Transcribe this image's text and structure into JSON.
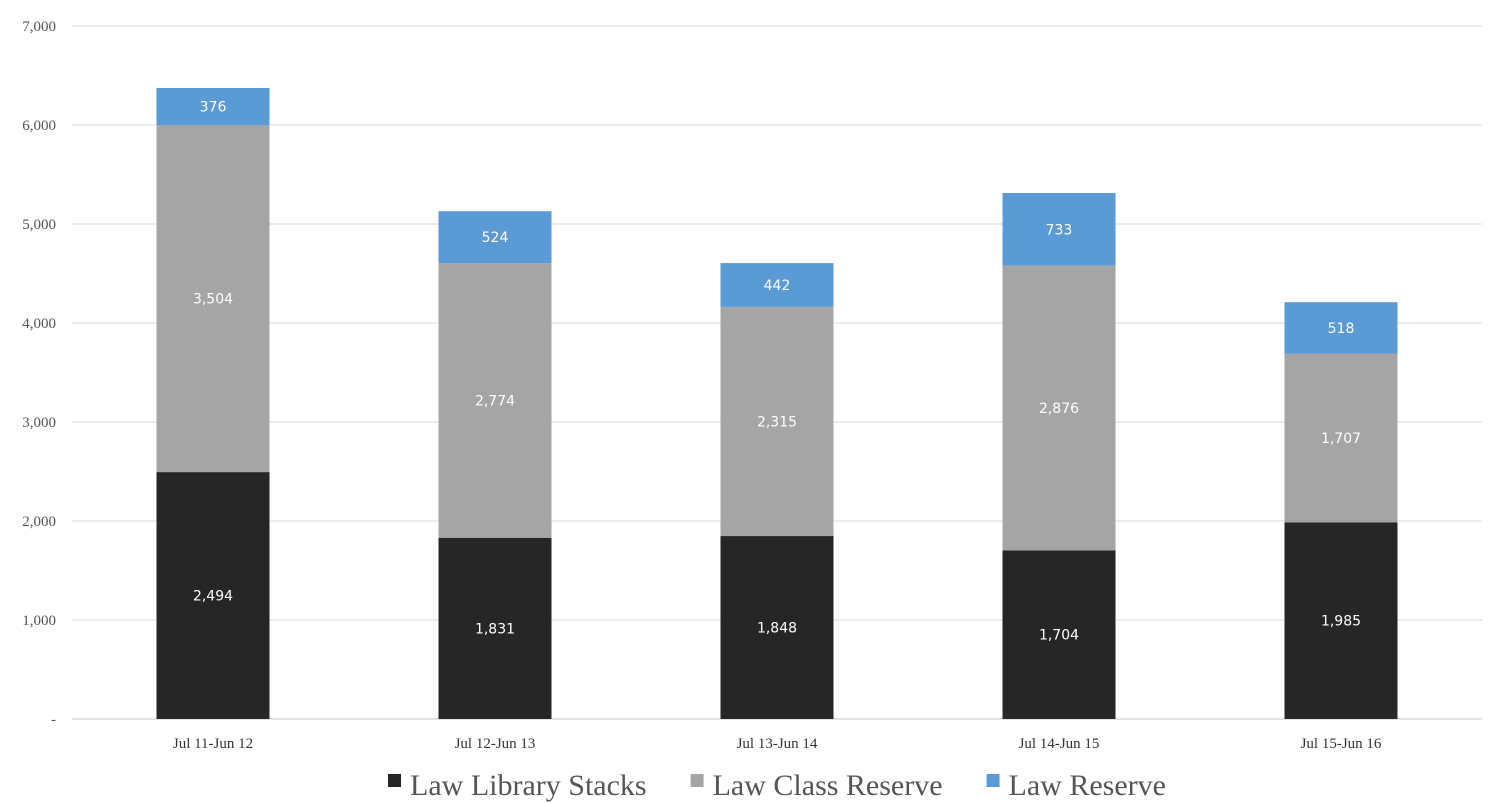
{
  "chart_data": {
    "type": "bar",
    "stacked": true,
    "categories": [
      "Jul 11-Jun 12",
      "Jul 12-Jun 13",
      "Jul 13-Jun 14",
      "Jul 14-Jun 15",
      "Jul 15-Jun 16"
    ],
    "series": [
      {
        "name": "Law Library Stacks",
        "color": "#262626",
        "values": [
          2494,
          1831,
          1848,
          1704,
          1985
        ],
        "labels": [
          "2,494",
          "1,831",
          "1,848",
          "1,704",
          "1,985"
        ]
      },
      {
        "name": "Law Class Reserve",
        "color": "#a5a5a5",
        "values": [
          3504,
          2774,
          2315,
          2876,
          1707
        ],
        "labels": [
          "3,504",
          "2,774",
          "2,315",
          "2,876",
          "1,707"
        ]
      },
      {
        "name": "Law Reserve",
        "color": "#5b9bd5",
        "values": [
          376,
          524,
          442,
          733,
          518
        ],
        "labels": [
          "376",
          "524",
          "442",
          "733",
          "518"
        ]
      }
    ],
    "ylim": [
      0,
      7000
    ],
    "yticks": [
      0,
      1000,
      2000,
      3000,
      4000,
      5000,
      6000,
      7000
    ],
    "ytick_labels": [
      "-",
      "1,000",
      "2,000",
      "3,000",
      "4,000",
      "5,000",
      "6,000",
      "7,000"
    ],
    "grid": true,
    "legend": "bottom",
    "title": "",
    "xlabel": "",
    "ylabel": ""
  }
}
